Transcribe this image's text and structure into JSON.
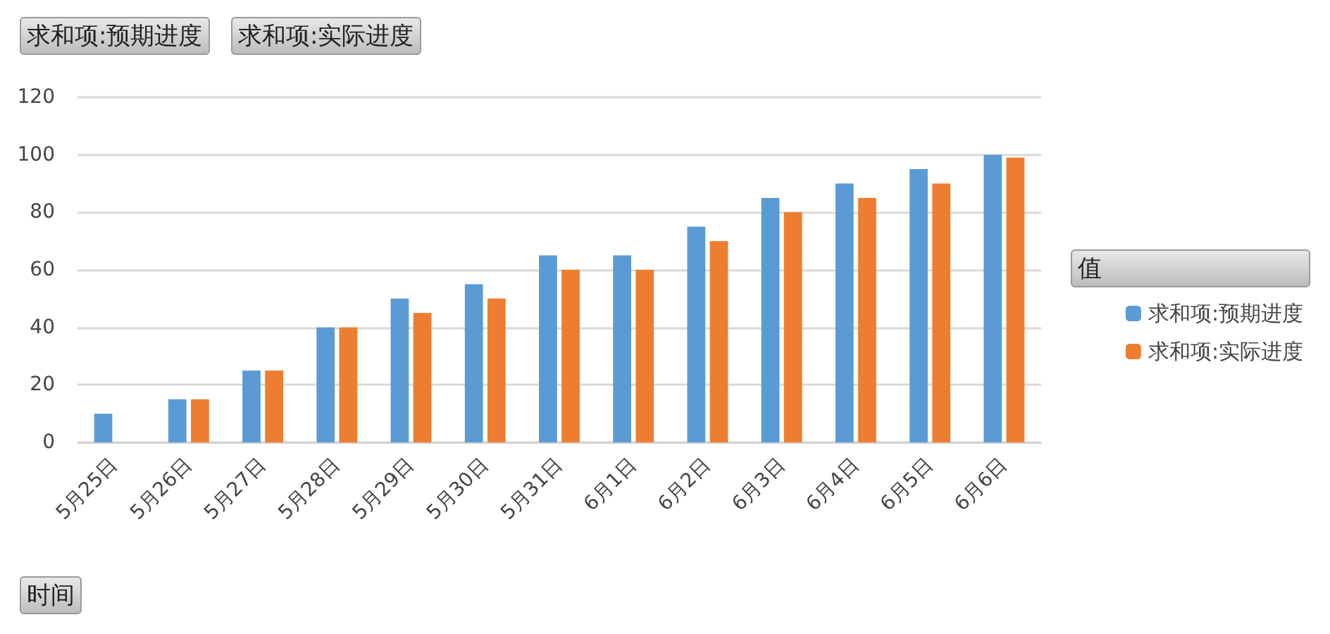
{
  "chart_data": {
    "type": "bar",
    "legend_title": "值",
    "annotations": [
      "求和项:预期进度",
      "求和项:实际进度",
      "时间"
    ],
    "categories": [
      "5月25日",
      "5月26日",
      "5月27日",
      "5月28日",
      "5月29日",
      "5月30日",
      "5月31日",
      "6月1日",
      "6月2日",
      "6月3日",
      "6月4日",
      "6月5日",
      "6月6日"
    ],
    "series": [
      {
        "name": "求和项:预期进度",
        "color": "#5b9bd5",
        "values": [
          10,
          15,
          25,
          40,
          50,
          55,
          65,
          65,
          75,
          85,
          90,
          95,
          100
        ]
      },
      {
        "name": "求和项:实际进度",
        "color": "#ed7d31",
        "values": [
          null,
          15,
          25,
          40,
          45,
          50,
          60,
          60,
          70,
          80,
          85,
          90,
          99
        ]
      }
    ],
    "ylim": [
      0,
      120
    ],
    "yticks": [
      0,
      20,
      40,
      60,
      80,
      100,
      120
    ],
    "grid": "y",
    "legend": "right"
  }
}
